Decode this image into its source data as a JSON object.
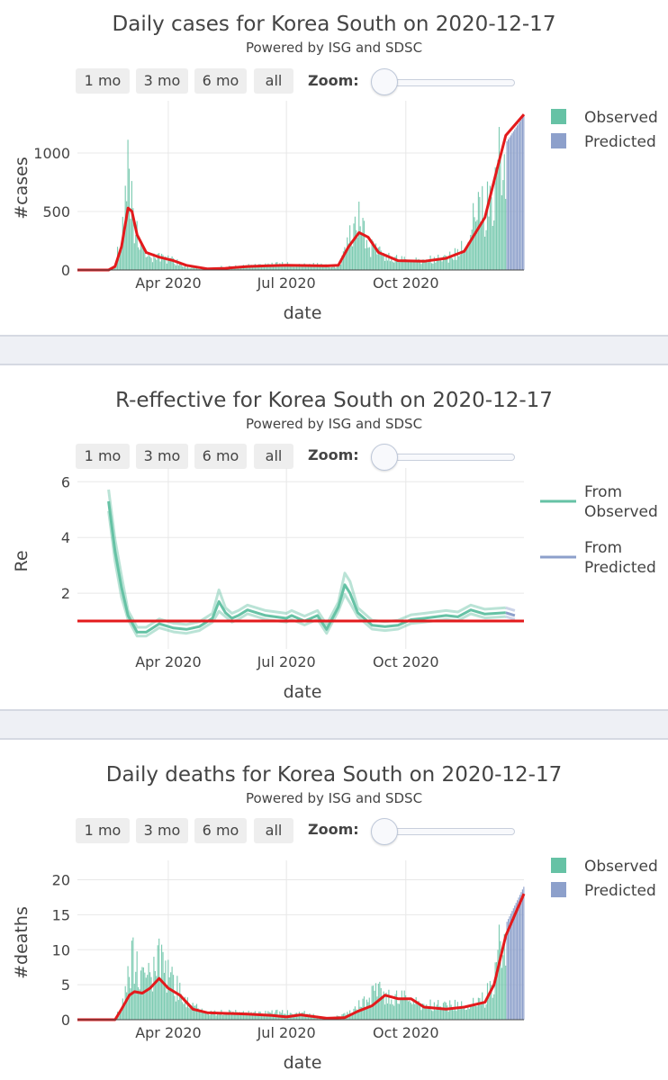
{
  "ui": {
    "buttons": [
      "1 mo",
      "3 mo",
      "6 mo",
      "all"
    ],
    "zoom_label": "Zoom:"
  },
  "colors": {
    "observed": "#66c2a5",
    "predicted": "#8da0cb",
    "fit_line": "#e31a1c",
    "separator": "#eef0f5"
  },
  "chart_data": [
    {
      "type": "bar",
      "title": "Daily cases for Korea South on 2020-12-17",
      "subtitle": "Powered by ISG and SDSC",
      "xlabel": "date",
      "ylabel": "#cases",
      "x_range": [
        "2020-01-22",
        "2020-12-31"
      ],
      "ylim": [
        0,
        1400
      ],
      "yticks": [
        0,
        500,
        1000
      ],
      "xticks": [
        {
          "date": "2020-04-01",
          "label": "Apr 2020"
        },
        {
          "date": "2020-07-01",
          "label": "Jul 2020"
        },
        {
          "date": "2020-10-01",
          "label": "Oct 2020"
        }
      ],
      "legend": {
        "placement": "right",
        "entries": [
          "Observed",
          "Predicted"
        ]
      },
      "observed_end": "2020-12-17",
      "bars_profile": [
        [
          "2020-01-22",
          0
        ],
        [
          "2020-02-15",
          0
        ],
        [
          "2020-02-20",
          30
        ],
        [
          "2020-02-25",
          300
        ],
        [
          "2020-02-29",
          700
        ],
        [
          "2020-03-02",
          850
        ],
        [
          "2020-03-05",
          450
        ],
        [
          "2020-03-10",
          200
        ],
        [
          "2020-03-15",
          100
        ],
        [
          "2020-03-25",
          100
        ],
        [
          "2020-04-05",
          80
        ],
        [
          "2020-04-15",
          30
        ],
        [
          "2020-04-25",
          10
        ],
        [
          "2020-05-05",
          5
        ],
        [
          "2020-05-10",
          25
        ],
        [
          "2020-05-20",
          25
        ],
        [
          "2020-06-01",
          40
        ],
        [
          "2020-06-15",
          45
        ],
        [
          "2020-07-01",
          50
        ],
        [
          "2020-07-15",
          45
        ],
        [
          "2020-08-01",
          40
        ],
        [
          "2020-08-10",
          30
        ],
        [
          "2020-08-15",
          150
        ],
        [
          "2020-08-20",
          300
        ],
        [
          "2020-08-27",
          440
        ],
        [
          "2020-09-03",
          200
        ],
        [
          "2020-09-10",
          150
        ],
        [
          "2020-09-20",
          100
        ],
        [
          "2020-10-01",
          80
        ],
        [
          "2020-10-15",
          80
        ],
        [
          "2020-11-01",
          100
        ],
        [
          "2020-11-10",
          140
        ],
        [
          "2020-11-20",
          300
        ],
        [
          "2020-11-25",
          550
        ],
        [
          "2020-12-01",
          500
        ],
        [
          "2020-12-08",
          700
        ],
        [
          "2020-12-14",
          1000
        ],
        [
          "2020-12-17",
          1100
        ]
      ],
      "predicted_profile": [
        [
          "2020-12-18",
          1100
        ],
        [
          "2020-12-31",
          1320
        ]
      ],
      "fit_line": [
        [
          "2020-01-22",
          0
        ],
        [
          "2020-02-15",
          0
        ],
        [
          "2020-02-20",
          30
        ],
        [
          "2020-02-25",
          200
        ],
        [
          "2020-03-01",
          530
        ],
        [
          "2020-03-04",
          500
        ],
        [
          "2020-03-08",
          300
        ],
        [
          "2020-03-15",
          150
        ],
        [
          "2020-03-25",
          110
        ],
        [
          "2020-04-05",
          80
        ],
        [
          "2020-04-15",
          40
        ],
        [
          "2020-05-01",
          10
        ],
        [
          "2020-05-15",
          15
        ],
        [
          "2020-06-01",
          30
        ],
        [
          "2020-06-15",
          35
        ],
        [
          "2020-07-01",
          40
        ],
        [
          "2020-08-01",
          35
        ],
        [
          "2020-08-10",
          40
        ],
        [
          "2020-08-18",
          200
        ],
        [
          "2020-08-26",
          320
        ],
        [
          "2020-09-02",
          280
        ],
        [
          "2020-09-10",
          150
        ],
        [
          "2020-09-25",
          80
        ],
        [
          "2020-10-15",
          75
        ],
        [
          "2020-11-01",
          100
        ],
        [
          "2020-11-15",
          160
        ],
        [
          "2020-12-01",
          450
        ],
        [
          "2020-12-10",
          850
        ],
        [
          "2020-12-17",
          1150
        ],
        [
          "2020-12-31",
          1330
        ]
      ]
    },
    {
      "type": "line",
      "title": "R-effective for Korea South on 2020-12-17",
      "subtitle": "Powered by ISG and SDSC",
      "xlabel": "date",
      "ylabel": "Re",
      "x_range": [
        "2020-01-22",
        "2020-12-31"
      ],
      "ylim": [
        0,
        6.3
      ],
      "yticks": [
        2,
        4,
        6
      ],
      "xticks": [
        {
          "date": "2020-04-01",
          "label": "Apr 2020"
        },
        {
          "date": "2020-07-01",
          "label": "Jul 2020"
        },
        {
          "date": "2020-10-01",
          "label": "Oct 2020"
        }
      ],
      "legend": {
        "placement": "right",
        "entries": [
          "From Observed",
          "From Predicted"
        ]
      },
      "reference_line": 1,
      "series": [
        {
          "name": "From Observed",
          "x": [
            "2020-02-15",
            "2020-02-20",
            "2020-02-25",
            "2020-03-01",
            "2020-03-08",
            "2020-03-15",
            "2020-03-25",
            "2020-04-05",
            "2020-04-15",
            "2020-04-25",
            "2020-05-05",
            "2020-05-10",
            "2020-05-15",
            "2020-05-20",
            "2020-05-25",
            "2020-06-01",
            "2020-06-15",
            "2020-07-01",
            "2020-07-05",
            "2020-07-10",
            "2020-07-15",
            "2020-07-20",
            "2020-07-25",
            "2020-08-01",
            "2020-08-10",
            "2020-08-15",
            "2020-08-19",
            "2020-08-25",
            "2020-09-05",
            "2020-09-15",
            "2020-09-25",
            "2020-10-05",
            "2020-10-15",
            "2020-11-01",
            "2020-11-10",
            "2020-11-20",
            "2020-12-01",
            "2020-12-17"
          ],
          "y": [
            5.3,
            3.5,
            2.2,
            1.2,
            0.6,
            0.6,
            0.9,
            0.75,
            0.7,
            0.8,
            1.1,
            1.7,
            1.3,
            1.1,
            1.2,
            1.4,
            1.2,
            1.1,
            1.2,
            1.1,
            1.0,
            1.1,
            1.2,
            0.7,
            1.5,
            2.3,
            2.0,
            1.3,
            0.85,
            0.8,
            0.85,
            1.05,
            1.1,
            1.2,
            1.15,
            1.4,
            1.25,
            1.3
          ]
        },
        {
          "name": "From Predicted",
          "x": [
            "2020-12-17",
            "2020-12-24"
          ],
          "y": [
            1.3,
            1.2
          ]
        }
      ],
      "band_width": 0.35
    },
    {
      "type": "bar",
      "title": "Daily deaths for Korea South on 2020-12-17",
      "subtitle": "Powered by ISG and SDSC",
      "xlabel": "date",
      "ylabel": "#deaths",
      "x_range": [
        "2020-01-22",
        "2020-12-31"
      ],
      "ylim": [
        0,
        22
      ],
      "yticks": [
        0,
        5,
        10,
        15,
        20
      ],
      "xticks": [
        {
          "date": "2020-04-01",
          "label": "Apr 2020"
        },
        {
          "date": "2020-07-01",
          "label": "Jul 2020"
        },
        {
          "date": "2020-10-01",
          "label": "Oct 2020"
        }
      ],
      "legend": {
        "placement": "right",
        "entries": [
          "Observed",
          "Predicted"
        ]
      },
      "observed_end": "2020-12-17",
      "bars_profile": [
        [
          "2020-01-22",
          0
        ],
        [
          "2020-02-20",
          0
        ],
        [
          "2020-02-25",
          2
        ],
        [
          "2020-03-02",
          6
        ],
        [
          "2020-03-05",
          10
        ],
        [
          "2020-03-10",
          5
        ],
        [
          "2020-03-20",
          6
        ],
        [
          "2020-03-25",
          8
        ],
        [
          "2020-04-01",
          6
        ],
        [
          "2020-04-10",
          4
        ],
        [
          "2020-04-20",
          2
        ],
        [
          "2020-05-01",
          1
        ],
        [
          "2020-05-15",
          1
        ],
        [
          "2020-06-01",
          1
        ],
        [
          "2020-06-15",
          1
        ],
        [
          "2020-07-01",
          1
        ],
        [
          "2020-07-15",
          1
        ],
        [
          "2020-08-01",
          0
        ],
        [
          "2020-08-20",
          1
        ],
        [
          "2020-09-01",
          3
        ],
        [
          "2020-09-10",
          4
        ],
        [
          "2020-09-20",
          3
        ],
        [
          "2020-10-01",
          3
        ],
        [
          "2020-10-15",
          2
        ],
        [
          "2020-11-01",
          2
        ],
        [
          "2020-11-20",
          2
        ],
        [
          "2020-12-01",
          3
        ],
        [
          "2020-12-08",
          6
        ],
        [
          "2020-12-12",
          10
        ],
        [
          "2020-12-17",
          14
        ]
      ],
      "predicted_profile": [
        [
          "2020-12-18",
          14
        ],
        [
          "2020-12-31",
          19
        ]
      ],
      "fit_line": [
        [
          "2020-01-22",
          0
        ],
        [
          "2020-02-20",
          0
        ],
        [
          "2020-02-25",
          1.5
        ],
        [
          "2020-03-02",
          3.5
        ],
        [
          "2020-03-06",
          4
        ],
        [
          "2020-03-12",
          3.8
        ],
        [
          "2020-03-18",
          4.5
        ],
        [
          "2020-03-25",
          5.9
        ],
        [
          "2020-04-01",
          4.5
        ],
        [
          "2020-04-10",
          3.5
        ],
        [
          "2020-04-20",
          1.5
        ],
        [
          "2020-05-01",
          1
        ],
        [
          "2020-06-01",
          0.8
        ],
        [
          "2020-06-20",
          0.6
        ],
        [
          "2020-07-01",
          0.4
        ],
        [
          "2020-07-12",
          0.7
        ],
        [
          "2020-07-20",
          0.5
        ],
        [
          "2020-08-01",
          0.2
        ],
        [
          "2020-08-15",
          0.3
        ],
        [
          "2020-08-25",
          1.2
        ],
        [
          "2020-09-05",
          2
        ],
        [
          "2020-09-15",
          3.5
        ],
        [
          "2020-09-25",
          3
        ],
        [
          "2020-10-05",
          3
        ],
        [
          "2020-10-15",
          1.8
        ],
        [
          "2020-11-01",
          1.5
        ],
        [
          "2020-11-15",
          1.8
        ],
        [
          "2020-12-01",
          2.5
        ],
        [
          "2020-12-08",
          5
        ],
        [
          "2020-12-17",
          12
        ],
        [
          "2020-12-31",
          18
        ]
      ]
    }
  ]
}
